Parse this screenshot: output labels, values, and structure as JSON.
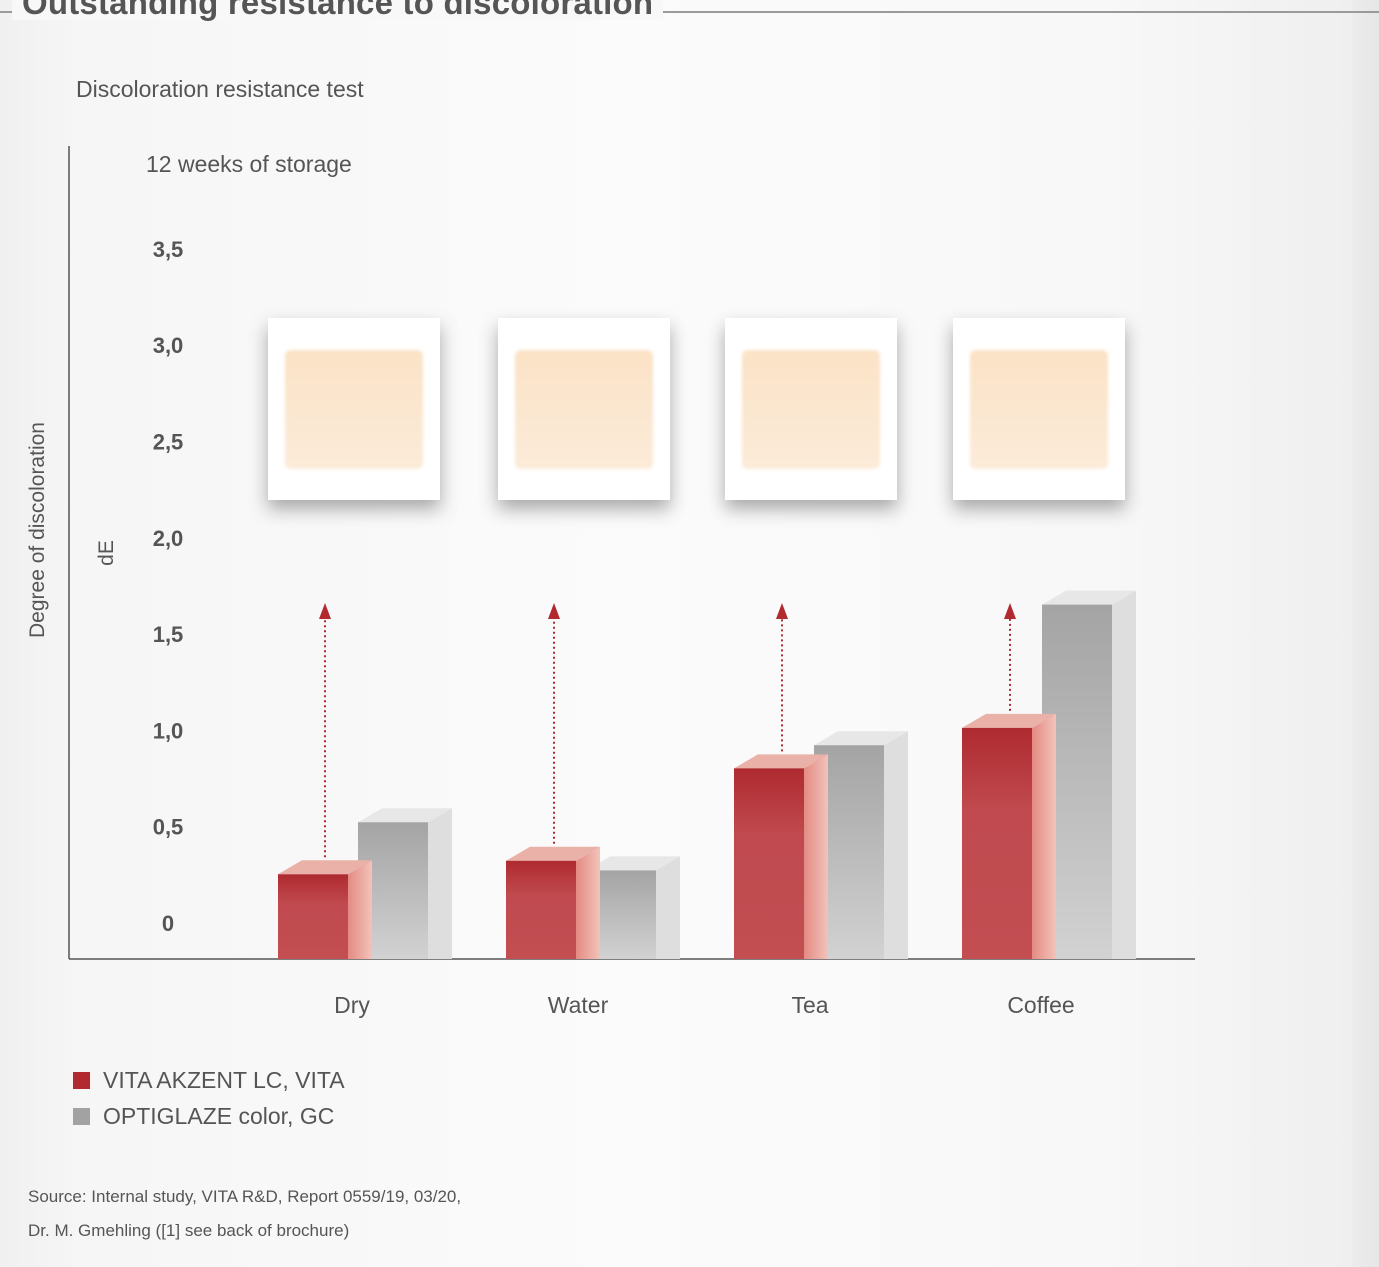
{
  "heading": "Outstanding resistance to discoloration",
  "chart_data": {
    "type": "bar",
    "title": "Discoloration resistance test",
    "subtitle": "12 weeks of storage",
    "ylabel": "Degree of discoloration",
    "yunit": "dE",
    "ylim": [
      0,
      3.5
    ],
    "yticks": [
      {
        "value": 0,
        "label": "0"
      },
      {
        "value": 0.5,
        "label": "0,5"
      },
      {
        "value": 1.0,
        "label": "1,0"
      },
      {
        "value": 1.5,
        "label": "1,5"
      },
      {
        "value": 2.0,
        "label": "2,0"
      },
      {
        "value": 2.5,
        "label": "2,5"
      },
      {
        "value": 3.0,
        "label": "3,0"
      },
      {
        "value": 3.5,
        "label": "3,5"
      }
    ],
    "categories": [
      "Dry",
      "Water",
      "Tea",
      "Coffee"
    ],
    "series": [
      {
        "name": "VITA AKZENT LC, VITA",
        "color": "#b22a30",
        "values": [
          0.44,
          0.51,
          0.99,
          1.2
        ]
      },
      {
        "name": "OPTIGLAZE color, GC",
        "color": "#a2a2a2",
        "values": [
          0.71,
          0.46,
          1.11,
          1.84
        ]
      }
    ],
    "grid": false,
    "legend_position": "bottom-left",
    "annotations": "dotted arrows from each VITA bar to a specimen swatch image"
  },
  "source": {
    "line1": "Source: Internal study, VITA R&D, Report 0559/19, 03/20,",
    "line2": "Dr. M. Gmehling ([1] see back of brochure)"
  },
  "colors": {
    "vita_red": "#b22a30",
    "gc_gray": "#a2a2a2",
    "text": "#555555",
    "axis": "#555555",
    "swatch": "#fbe3c8"
  }
}
